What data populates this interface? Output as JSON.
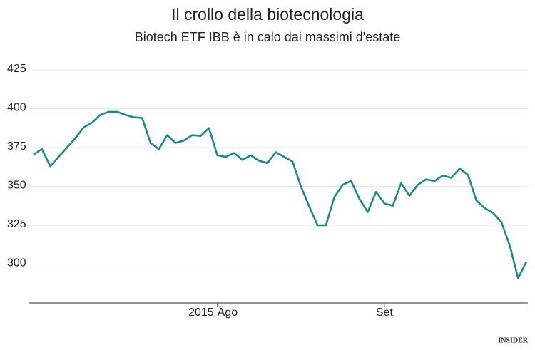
{
  "chart_data": {
    "type": "line",
    "title": "Il crollo della biotecnologia",
    "subtitle": "Biotech ETF IBB è in calo dai massimi d'estate",
    "year": "2015",
    "categories": [
      null,
      null,
      null,
      null,
      null,
      null,
      null,
      null,
      null,
      null,
      null,
      null,
      null,
      null,
      null,
      null,
      null,
      null,
      null,
      null,
      null,
      null,
      "Ago",
      null,
      null,
      null,
      null,
      null,
      null,
      null,
      null,
      null,
      null,
      null,
      null,
      null,
      null,
      null,
      null,
      null,
      null,
      null,
      "Set",
      null,
      null,
      null,
      null,
      null,
      null,
      null,
      null,
      null,
      null,
      null,
      null,
      null,
      null,
      null,
      null,
      null
    ],
    "series": [
      {
        "name": "IBB",
        "color": "#23868a",
        "values": [
          370.5,
          374,
          363,
          369,
          375,
          381,
          388,
          391,
          396,
          398,
          398,
          396,
          394.5,
          394,
          378,
          374,
          383,
          378,
          379.5,
          383,
          382.5,
          387.5,
          370,
          369,
          371.5,
          367,
          370,
          366.5,
          365,
          372,
          369,
          366,
          350,
          337,
          325,
          325,
          343,
          351,
          353.5,
          342,
          333.5,
          346.5,
          339,
          337.5,
          352,
          344,
          351,
          354.5,
          353.5,
          357,
          355.5,
          361.5,
          357.5,
          341,
          336,
          333,
          327,
          312,
          291,
          301.5
        ]
      }
    ],
    "ylim": [
      275,
      425
    ],
    "yticks": [
      300,
      325,
      350,
      375,
      400,
      425
    ],
    "grid": true,
    "source_logo": "INSIDER"
  }
}
